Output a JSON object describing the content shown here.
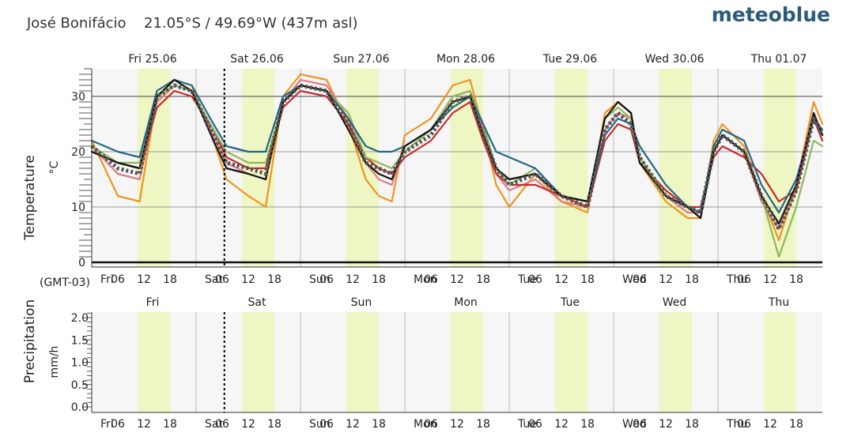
{
  "header": {
    "location": "José Bonifácio",
    "coords": "21.05°S / 49.69°W (437m asl)",
    "brand": "meteoblue"
  },
  "colors": {
    "daylight_band": "#eef6c4",
    "plot_bg": "#f6f6f6",
    "grid": "#bbbbbb",
    "ensemble_mean": "#555555",
    "now_line": "#000000"
  },
  "time_axis": {
    "timezone_label": "(GMT-03)",
    "date_labels": [
      "Fri 25.06",
      "Sat 26.06",
      "Sun 27.06",
      "Mon 28.06",
      "Tue 29.06",
      "Wed 30.06",
      "Thu 01.07"
    ],
    "day_labels": [
      "Fri",
      "Sat",
      "Sun",
      "Mon",
      "Tue",
      "Wed",
      "Thu"
    ],
    "hour_labels": [
      "06",
      "12",
      "18"
    ],
    "now_hour": 30.5
  },
  "chart_data": [
    {
      "type": "line",
      "title": "",
      "ylabel": "Temperature",
      "yunit": "°C",
      "x_unit": "hours since Fri 25.06 00:00 (GMT-03)",
      "xlim": [
        0,
        168
      ],
      "ylim": [
        0,
        35
      ],
      "yticks": [
        0,
        10,
        20,
        30
      ],
      "grid": true,
      "legend": "none",
      "series": [
        {
          "color": "#f0941e",
          "x": [
            0,
            6,
            11,
            15,
            19,
            23,
            28,
            31,
            36,
            40,
            44,
            48,
            54,
            59,
            63,
            66,
            69,
            72,
            78,
            83,
            87,
            90,
            93,
            96,
            102,
            108,
            114,
            118,
            121,
            124,
            126,
            132,
            137,
            140,
            143,
            145,
            150,
            154,
            158,
            162,
            166,
            168
          ],
          "values": [
            22,
            12,
            11,
            30,
            33,
            32,
            22,
            15,
            12,
            10,
            30,
            34,
            33,
            25,
            15,
            12,
            11,
            23,
            26,
            32,
            33,
            24,
            14,
            10,
            16,
            11,
            9,
            27,
            29,
            27,
            18,
            11,
            8,
            8,
            22,
            25,
            21,
            12,
            4,
            14,
            29,
            25
          ]
        },
        {
          "color": "#e07a88",
          "x": [
            0,
            6,
            11,
            15,
            19,
            23,
            28,
            31,
            36,
            40,
            44,
            48,
            54,
            59,
            63,
            66,
            69,
            72,
            78,
            83,
            87,
            90,
            93,
            96,
            102,
            108,
            114,
            118,
            121,
            124,
            126,
            132,
            137,
            140,
            143,
            145,
            150,
            154,
            158,
            162,
            166,
            168
          ],
          "values": [
            21,
            16,
            15,
            29,
            32,
            31,
            23,
            18,
            16,
            15,
            29,
            33,
            32,
            26,
            18,
            15,
            14,
            21,
            24,
            30,
            31,
            24,
            16,
            13,
            15,
            11,
            10,
            24,
            27,
            26,
            19,
            12,
            9,
            9,
            20,
            23,
            20,
            11,
            6,
            13,
            27,
            23
          ]
        },
        {
          "color": "#c92a2a",
          "x": [
            0,
            6,
            11,
            15,
            19,
            23,
            28,
            31,
            36,
            40,
            44,
            48,
            54,
            59,
            63,
            66,
            69,
            72,
            78,
            83,
            87,
            90,
            93,
            96,
            102,
            108,
            114,
            118,
            121,
            124,
            126,
            132,
            137,
            140,
            143,
            145,
            150,
            154,
            158,
            162,
            166,
            168
          ],
          "values": [
            20,
            18,
            17,
            28,
            31,
            30,
            24,
            19,
            17,
            17,
            28,
            31,
            30,
            25,
            19,
            17,
            16,
            19,
            22,
            27,
            29,
            22,
            16,
            14,
            14,
            12,
            10,
            22,
            25,
            24,
            18,
            13,
            10,
            10,
            19,
            21,
            19,
            16,
            11,
            13,
            26,
            22
          ]
        },
        {
          "color": "#8db85a",
          "x": [
            0,
            6,
            11,
            15,
            19,
            23,
            28,
            31,
            36,
            40,
            44,
            48,
            54,
            59,
            63,
            66,
            69,
            72,
            78,
            83,
            87,
            90,
            93,
            96,
            102,
            108,
            114,
            118,
            121,
            124,
            126,
            132,
            137,
            140,
            143,
            145,
            150,
            154,
            158,
            162,
            166,
            168
          ],
          "values": [
            21,
            18,
            18,
            30,
            32,
            31,
            24,
            20,
            18,
            18,
            29,
            32,
            31,
            27,
            19,
            18,
            17,
            20,
            24,
            30,
            31,
            25,
            17,
            14,
            17,
            12,
            11,
            26,
            28,
            26,
            19,
            12,
            10,
            9,
            20,
            23,
            20,
            12,
            1,
            10,
            22,
            21
          ]
        },
        {
          "color": "#22668a",
          "x": [
            0,
            6,
            11,
            15,
            19,
            23,
            28,
            31,
            36,
            40,
            44,
            48,
            54,
            59,
            63,
            66,
            69,
            72,
            78,
            83,
            87,
            90,
            93,
            96,
            102,
            108,
            114,
            118,
            121,
            124,
            126,
            132,
            137,
            140,
            143,
            145,
            150,
            154,
            158,
            162,
            166,
            168
          ],
          "values": [
            22,
            20,
            19,
            31,
            33,
            32,
            25,
            21,
            20,
            20,
            30,
            32,
            31,
            26,
            21,
            20,
            20,
            21,
            24,
            28,
            30,
            25,
            20,
            19,
            17,
            12,
            11,
            23,
            26,
            25,
            21,
            14,
            10,
            9,
            21,
            24,
            22,
            14,
            9,
            15,
            26,
            24
          ]
        },
        {
          "color": "#111111",
          "x": [
            0,
            6,
            11,
            15,
            19,
            23,
            28,
            31,
            36,
            40,
            44,
            48,
            54,
            59,
            63,
            66,
            69,
            72,
            78,
            83,
            87,
            90,
            93,
            96,
            102,
            108,
            114,
            118,
            121,
            124,
            126,
            132,
            137,
            140,
            143,
            145,
            150,
            154,
            158,
            162,
            166,
            168
          ],
          "values": [
            20,
            18,
            17,
            30,
            33,
            31,
            22,
            17,
            16,
            15,
            29,
            32,
            31,
            24,
            18,
            16,
            15,
            21,
            24,
            29,
            30,
            23,
            17,
            15,
            16,
            12,
            11,
            26,
            29,
            27,
            18,
            12,
            10,
            8,
            20,
            23,
            20,
            12,
            7,
            14,
            27,
            23
          ]
        },
        {
          "color": "#555555",
          "dashed": true,
          "x": [
            0,
            6,
            11,
            15,
            19,
            23,
            28,
            31,
            36,
            40,
            44,
            48,
            54,
            59,
            63,
            66,
            69,
            72,
            78,
            83,
            87,
            90,
            93,
            96,
            102,
            108,
            114,
            118,
            121,
            124,
            126,
            132,
            137,
            140,
            143,
            145,
            150,
            154,
            158,
            162,
            166,
            168
          ],
          "values": [
            21,
            17,
            16,
            30,
            32,
            31,
            23,
            18,
            17,
            16,
            29,
            32,
            31,
            25,
            18,
            17,
            16,
            20,
            23,
            29,
            30,
            23,
            17,
            14,
            16,
            12,
            10,
            24,
            27,
            25,
            19,
            12,
            10,
            9,
            20,
            23,
            20,
            12,
            6,
            13,
            26,
            23
          ]
        }
      ]
    },
    {
      "type": "bar",
      "title": "",
      "ylabel": "Precipitation",
      "yunit": "mm/h",
      "xlim": [
        0,
        168
      ],
      "ylim": [
        0,
        2.1
      ],
      "yticks": [
        "0.0",
        "0.5",
        "1.0",
        "1.5",
        "2.0"
      ],
      "grid": true,
      "legend": "none",
      "values": []
    }
  ]
}
